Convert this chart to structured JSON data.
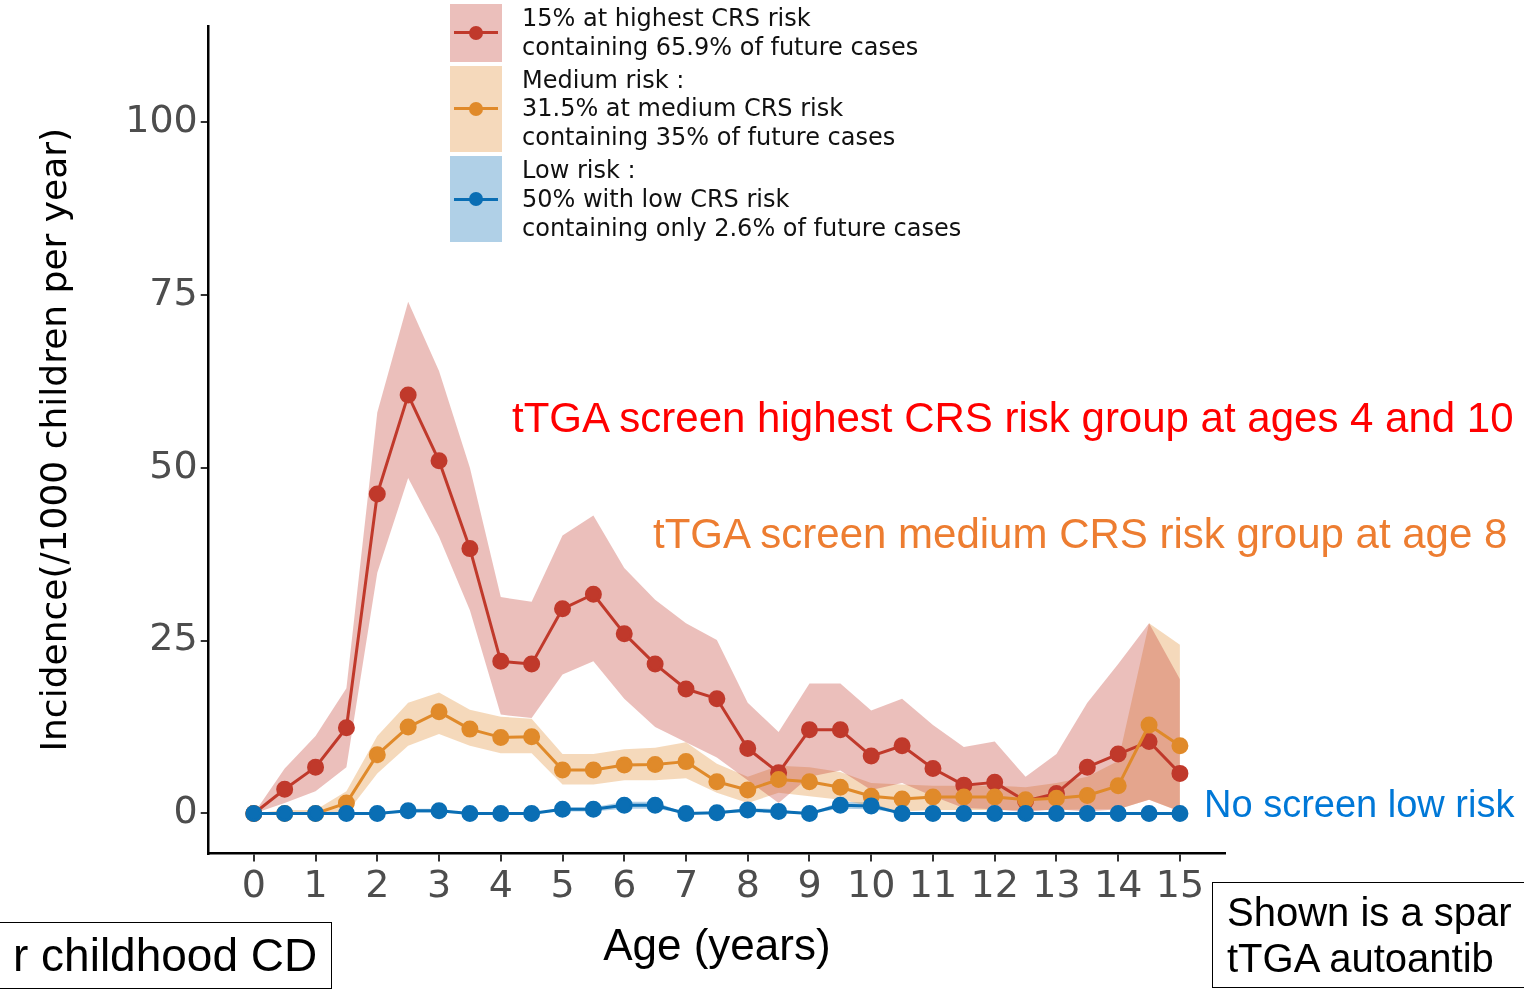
{
  "chart_data": {
    "type": "line",
    "xlabel": "Age (years)",
    "ylabel": "Incidence(/1000 children per year)",
    "x": [
      0,
      0.5,
      1,
      1.5,
      2,
      2.5,
      3,
      3.5,
      4,
      4.5,
      5,
      5.5,
      6,
      6.5,
      7,
      7.5,
      8,
      8.5,
      9,
      9.5,
      10,
      10.5,
      11,
      11.5,
      12,
      12.5,
      13,
      13.5,
      14,
      14.5,
      15
    ],
    "series": [
      {
        "name": "15% at highest CRS risk\ncontaining 65.9% of future cases",
        "color": "#c0392b",
        "values": [
          0,
          3.5,
          6.7,
          12.4,
          46.2,
          60.5,
          51,
          38.3,
          22,
          21.6,
          29.6,
          31.7,
          26,
          21.6,
          18,
          16.6,
          9.4,
          5.9,
          12.1,
          12.1,
          8.3,
          9.8,
          6.5,
          4.1,
          4.5,
          1.8,
          2.9,
          6.7,
          8.6,
          10.4,
          5.8
        ],
        "lower": [
          0,
          1.5,
          3.2,
          6.7,
          34.8,
          48.5,
          40,
          29.4,
          14.3,
          13.8,
          20.1,
          22,
          16.6,
          12.5,
          10.3,
          8.1,
          4.8,
          1.5,
          5.3,
          6.2,
          3.4,
          4.4,
          2.5,
          0.8,
          0.6,
          0.2,
          0.6,
          0.3,
          0.6,
          2,
          0.3
        ],
        "upper": [
          0,
          6.5,
          11.2,
          18.1,
          58,
          74,
          64,
          50,
          31.3,
          30.6,
          40.2,
          43.1,
          35.5,
          30.9,
          27.5,
          25.1,
          16,
          11.8,
          18.8,
          18.8,
          14.9,
          16.6,
          12.8,
          9.6,
          10.4,
          5.3,
          8.6,
          16,
          21.6,
          27.5,
          19.4
        ]
      },
      {
        "name": "Medium risk :\n31.5% at medium CRS risk\ncontaining 35% of future cases",
        "color": "#e08a2a",
        "values": [
          0,
          0,
          0,
          1.5,
          8.5,
          12.5,
          14.7,
          12.2,
          11,
          11.1,
          6.3,
          6.3,
          7,
          7.1,
          7.5,
          4.6,
          3.4,
          4.9,
          4.6,
          3.8,
          2.5,
          2.1,
          2.4,
          2.4,
          2.4,
          2,
          2.2,
          2.6,
          4,
          12.8,
          9.8
        ],
        "lower": [
          0,
          0,
          0,
          0,
          5.8,
          9.8,
          11.5,
          9.8,
          8.7,
          8.7,
          4.2,
          4.2,
          4.8,
          4.8,
          5.1,
          3,
          1.5,
          3,
          2.5,
          2,
          1.1,
          0.3,
          0.5,
          0.5,
          0.5,
          0.5,
          0.5,
          0.6,
          0.6,
          2,
          0.3
        ],
        "upper": [
          0,
          0.5,
          0.5,
          3.2,
          11.2,
          16,
          17.5,
          15,
          14,
          13.7,
          8.6,
          8.6,
          9.3,
          9.5,
          10.3,
          7.2,
          5.3,
          6.9,
          6.7,
          6,
          4.4,
          4.2,
          4,
          4,
          4,
          3.8,
          4.4,
          5.3,
          7.6,
          27.5,
          24.4
        ]
      },
      {
        "name": "Low risk :\n50% with low CRS risk\ncontaining only 2.6% of future cases",
        "color": "#0a6eb4",
        "values": [
          0,
          0,
          0,
          0,
          0,
          0.4,
          0.4,
          0,
          0,
          0,
          0.6,
          0.6,
          1.2,
          1.2,
          0,
          0.1,
          0.5,
          0.3,
          0,
          1.2,
          1.1,
          0,
          0,
          0,
          0,
          0,
          0,
          0,
          0,
          0,
          0
        ],
        "lower": [
          0,
          0,
          0,
          0,
          0,
          0.1,
          0.1,
          0,
          0,
          0,
          0.3,
          0.3,
          0.7,
          0.7,
          0,
          0,
          0.2,
          0,
          0,
          0.7,
          0.6,
          0,
          0,
          0,
          0,
          0,
          0,
          0,
          0,
          0,
          0
        ],
        "upper": [
          0,
          0,
          0,
          0,
          0,
          0.7,
          0.7,
          0,
          0,
          0,
          0.9,
          0.9,
          1.7,
          1.7,
          0,
          0.3,
          0.8,
          0.6,
          0,
          1.7,
          1.6,
          0,
          0,
          0,
          0,
          0,
          0,
          0,
          0,
          0,
          0
        ]
      }
    ],
    "xlim": [
      -0.73,
      15.73
    ],
    "ylim": [
      -5.8,
      113.9
    ],
    "xticks": [
      0,
      1,
      2,
      3,
      4,
      5,
      6,
      7,
      8,
      9,
      10,
      11,
      12,
      13,
      14,
      15
    ],
    "yticks": [
      0,
      25,
      50,
      75,
      100
    ],
    "grid": false,
    "legend": "top",
    "marker": "circle",
    "line_style": "solid",
    "annotations": [
      "tTGA screen highest CRS risk group at ages 4 and 10",
      "tTGA screen medium CRS risk group at age 8",
      "No screen low risk",
      "r childhood CD",
      "Shown is a spar\ntTGA autoantib"
    ]
  }
}
